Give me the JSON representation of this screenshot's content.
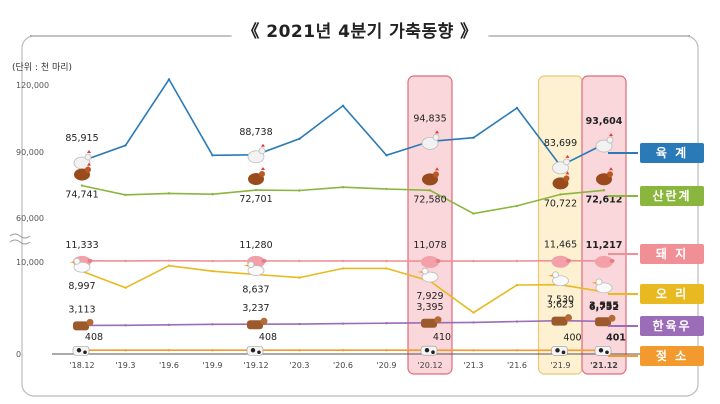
{
  "chart_data": {
    "type": "line",
    "title": "《 2021년 4분기 가축동향 》",
    "unit": "(단위 : 천 마리)",
    "x": [
      "'18.12",
      "'19.3",
      "'19.6",
      "'19.9",
      "'19.12",
      "'20.3",
      "'20.6",
      "'20.9",
      "'20.12",
      "'21.3",
      "'21.6",
      "'21.9",
      "'21.12"
    ],
    "y_ticks": [
      "120,000",
      "90,000",
      "60,000",
      "10,000",
      "0"
    ],
    "highlighted_periods": [
      "'20.12",
      "'21.9",
      "'21.12"
    ],
    "series": [
      {
        "name": "육 계",
        "color": "#2a7ab8",
        "icon": "chicken-icon",
        "values": [
          85915,
          93000,
          123000,
          88500,
          88738,
          96000,
          111000,
          88500,
          94835,
          96500,
          110000,
          83699,
          93604
        ],
        "labels": [
          "85,915",
          "",
          "",
          "",
          "88,738",
          "",
          "",
          "",
          "94,835",
          "",
          "",
          "83,699",
          "93,604"
        ]
      },
      {
        "name": "산란계",
        "color": "#8ab63e",
        "icon": "hen-icon",
        "values": [
          74741,
          70500,
          71200,
          70800,
          72701,
          72500,
          74000,
          73200,
          72580,
          62000,
          65500,
          70722,
          72612
        ],
        "labels": [
          "74,741",
          "",
          "",
          "",
          "72,701",
          "",
          "",
          "",
          "72,580",
          "",
          "",
          "70,722",
          "72,612"
        ]
      },
      {
        "name": "돼 지",
        "color": "#f08f96",
        "icon": "pig-icon",
        "values": [
          11333,
          11200,
          11450,
          11120,
          11280,
          11150,
          11250,
          11150,
          11078,
          11050,
          11150,
          11465,
          11217
        ],
        "labels": [
          "11,333",
          "",
          "",
          "",
          "11,280",
          "",
          "",
          "",
          "11,078",
          "",
          "",
          "11,465",
          "11,217"
        ]
      },
      {
        "name": "오 리",
        "color": "#e8b920",
        "icon": "duck-icon",
        "values": [
          8997,
          7200,
          9600,
          9000,
          8637,
          8300,
          9300,
          9300,
          7929,
          4500,
          7500,
          7530,
          6752
        ],
        "labels": [
          "8,997",
          "",
          "",
          "",
          "8,637",
          "",
          "",
          "",
          "7,929",
          "",
          "",
          "7,530",
          "6,752"
        ]
      },
      {
        "name": "한육우",
        "color": "#9b6cb8",
        "icon": "cow-icon",
        "values": [
          3113,
          3120,
          3170,
          3230,
          3237,
          3250,
          3300,
          3350,
          3395,
          3430,
          3530,
          3623,
          3555
        ],
        "labels": [
          "3,113",
          "",
          "",
          "",
          "3,237",
          "",
          "",
          "",
          "3,395",
          "",
          "",
          "3,623",
          "3,555"
        ]
      },
      {
        "name": "젖 소",
        "color": "#f29a2e",
        "icon": "dairy-cow-icon",
        "values": [
          408,
          408,
          408,
          408,
          408,
          408,
          409,
          410,
          410,
          405,
          402,
          400,
          401
        ],
        "labels": [
          "408",
          "",
          "",
          "",
          "408",
          "",
          "",
          "",
          "410",
          "",
          "",
          "400",
          "401"
        ]
      }
    ]
  }
}
